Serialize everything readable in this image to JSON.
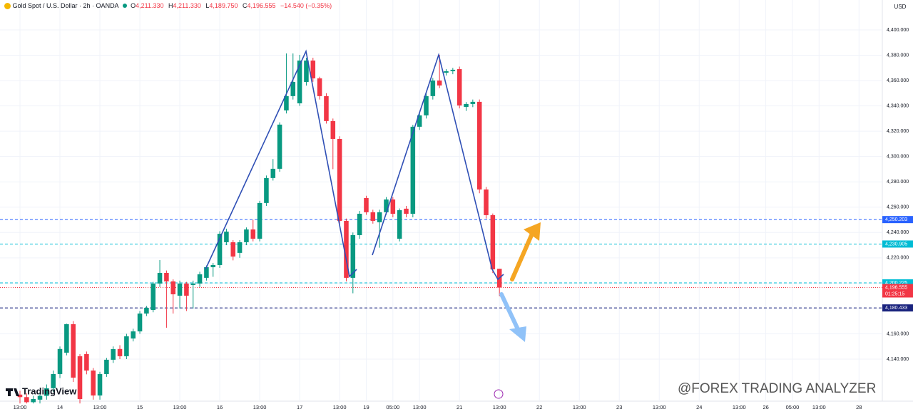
{
  "header": {
    "symbol": "Gold Spot / U.S. Dollar · 2h · OANDA",
    "o_label": "O",
    "open": "4,211.330",
    "h_label": "H",
    "high": "4,211.330",
    "l_label": "L",
    "low": "4,189.750",
    "c_label": "C",
    "close": "4,196.555",
    "change": "−14.540 (−0.35%)"
  },
  "currency": "USD",
  "brand": "TradingView",
  "watermark": "@FOREX TRADING ANALYZER",
  "chart_data": {
    "type": "candlestick",
    "up_color": "#089981",
    "down_color": "#f23645",
    "xlim": [
      -3,
      129.5
    ],
    "xticks": [
      {
        "value": 0,
        "label": "13:00"
      },
      {
        "value": 6,
        "label": "14"
      },
      {
        "value": 12,
        "label": "13:00"
      },
      {
        "value": 18,
        "label": "15"
      },
      {
        "value": 24,
        "label": "13:00"
      },
      {
        "value": 30,
        "label": "16"
      },
      {
        "value": 36,
        "label": "13:00"
      },
      {
        "value": 42,
        "label": "17"
      },
      {
        "value": 48,
        "label": "13:00"
      },
      {
        "value": 52,
        "label": "19"
      },
      {
        "value": 56,
        "label": "05:00"
      },
      {
        "value": 60,
        "label": "13:00"
      },
      {
        "value": 66,
        "label": "21"
      },
      {
        "value": 72,
        "label": "13:00"
      },
      {
        "value": 78,
        "label": "22"
      },
      {
        "value": 84,
        "label": "13:00"
      },
      {
        "value": 90,
        "label": "23"
      },
      {
        "value": 96,
        "label": "13:00"
      },
      {
        "value": 102,
        "label": "24"
      },
      {
        "value": 108,
        "label": "13:00"
      },
      {
        "value": 112,
        "label": "26"
      },
      {
        "value": 116,
        "label": "05:00"
      },
      {
        "value": 120,
        "label": "13:00"
      },
      {
        "value": 126,
        "label": "28"
      }
    ],
    "ylim": [
      4106.8,
      4423.6
    ],
    "yticks": [
      {
        "value": 4140,
        "label": "4,140.000"
      },
      {
        "value": 4160,
        "label": "4,160.000"
      },
      {
        "value": 4180,
        "label": "4,180.000"
      },
      {
        "value": 4200,
        "label": "4,200.000"
      },
      {
        "value": 4220,
        "label": "4,220.000"
      },
      {
        "value": 4240,
        "label": "4,240.000"
      },
      {
        "value": 4260,
        "label": "4,260.000"
      },
      {
        "value": 4280,
        "label": "4,280.000"
      },
      {
        "value": 4300,
        "label": "4,300.000"
      },
      {
        "value": 4320,
        "label": "4,320.000"
      },
      {
        "value": 4340,
        "label": "4,340.000"
      },
      {
        "value": 4360,
        "label": "4,360.000"
      },
      {
        "value": 4380,
        "label": "4,380.000"
      },
      {
        "value": 4400,
        "label": "4,400.000"
      }
    ],
    "grid": true,
    "open": [
      4112,
      4110,
      4106,
      4108,
      4111,
      4117,
      4128.2,
      4145.1,
      4167.6,
      4142.3,
      4144,
      4131,
      4111.3,
      4128.2,
      4139.5,
      4148,
      4142.3,
      4156.3,
      4161.9,
      4176,
      4178.8,
      4199.7,
      4208.1,
      4201.4,
      4190.1,
      4199.7,
      4198.5,
      4199.7,
      4204.2,
      4212.6,
      4214.3,
      4232.3,
      4232.3,
      4223.9,
      4232.3,
      4242.4,
      4235.1,
      4263.3,
      4283,
      4290.3,
      4336.4,
      4347.7,
      4342,
      4358.9,
      4375.8,
      4361.7,
      4347.7,
      4328,
      4313.9,
      4249.2,
      4204.2,
      4237.9,
      4267.2,
      4256,
      4248.1,
      4256,
      4266.1,
      4235.1,
      4258.8,
      4254.8,
      4323.5,
      4332.5,
      4347.7,
      4360,
      4366.2,
      4367.4,
      4369,
      4339.2,
      4341.5,
      4343.2,
      4274,
      4253.7,
      4211.33
    ],
    "high": [
      4115,
      4113,
      4111,
      4114,
      4120,
      4131,
      4150,
      4168,
      4170,
      4144,
      4146,
      4133,
      4130,
      4141,
      4150,
      4151,
      4160,
      4164,
      4178,
      4182,
      4201,
      4218.2,
      4210,
      4203,
      4202,
      4201,
      4202,
      4209,
      4214,
      4216,
      4241,
      4243,
      4234,
      4234,
      4244,
      4250,
      4265,
      4285,
      4298,
      4327,
      4381.4,
      4381.4,
      4380.3,
      4378,
      4378,
      4363,
      4350,
      4330,
      4316,
      4251,
      4240,
      4257,
      4269,
      4258,
      4258,
      4268,
      4268,
      4259,
      4261,
      4325,
      4335,
      4350,
      4362,
      4380.3,
      4369,
      4370,
      4371,
      4343,
      4345,
      4345,
      4276,
      4255,
      4211.33
    ],
    "low": [
      4105,
      4105,
      4105,
      4105,
      4108,
      4114,
      4125,
      4143,
      4122,
      4105,
      4128,
      4108,
      4108,
      4126,
      4137,
      4140,
      4140,
      4154,
      4160,
      4174,
      4177,
      4197,
      4164.8,
      4176,
      4180,
      4178,
      4180,
      4197,
      4202,
      4205,
      4212,
      4230,
      4218,
      4220,
      4230,
      4233,
      4233,
      4261,
      4281,
      4288,
      4334,
      4345,
      4340,
      4356,
      4359,
      4345,
      4326,
      4290,
      4245,
      4201.4,
      4192,
      4235,
      4254,
      4247,
      4228,
      4254,
      4252,
      4233,
      4252,
      4252,
      4321,
      4330,
      4345,
      4354,
      4364,
      4365,
      4338,
      4336,
      4339,
      4271,
      4251,
      4208,
      4189.75
    ],
    "close": [
      4110,
      4106,
      4108.5,
      4111,
      4117,
      4128.2,
      4148,
      4167.6,
      4125.4,
      4108.5,
      4131,
      4111.3,
      4128.2,
      4139.5,
      4147.9,
      4142.3,
      4158,
      4161.9,
      4176,
      4180.5,
      4199.7,
      4208.1,
      4201.4,
      4191.2,
      4199.7,
      4190.1,
      4199.7,
      4207,
      4212.6,
      4214.3,
      4239,
      4240.7,
      4221,
      4232.3,
      4242.4,
      4235.1,
      4263.3,
      4283,
      4290.3,
      4325.2,
      4347.7,
      4358.9,
      4375.8,
      4375.8,
      4361.7,
      4347.7,
      4328,
      4313.9,
      4249.2,
      4204.2,
      4237.9,
      4254.8,
      4256,
      4249.2,
      4256,
      4266.1,
      4254.8,
      4257.6,
      4254.8,
      4323.5,
      4332.5,
      4347.7,
      4360,
      4356.1,
      4367.4,
      4368.5,
      4340.3,
      4341.5,
      4343.2,
      4274,
      4253.7,
      4210.9,
      4196.555
    ],
    "levels": [
      {
        "value": 4250.203,
        "label": "4,250.203",
        "color": "#2962ff"
      },
      {
        "value": 4230.905,
        "label": "4,230.905",
        "color": "#00bcd4"
      },
      {
        "value": 4200.225,
        "label": "4,200.225",
        "color": "#00bcd4"
      },
      {
        "value": 4180.433,
        "label": "4,180.433",
        "color": "#1a237e"
      }
    ],
    "last": {
      "value": 4196.555,
      "label": "4,196.555",
      "countdown": "01:25:15",
      "color": "#f23645"
    }
  }
}
